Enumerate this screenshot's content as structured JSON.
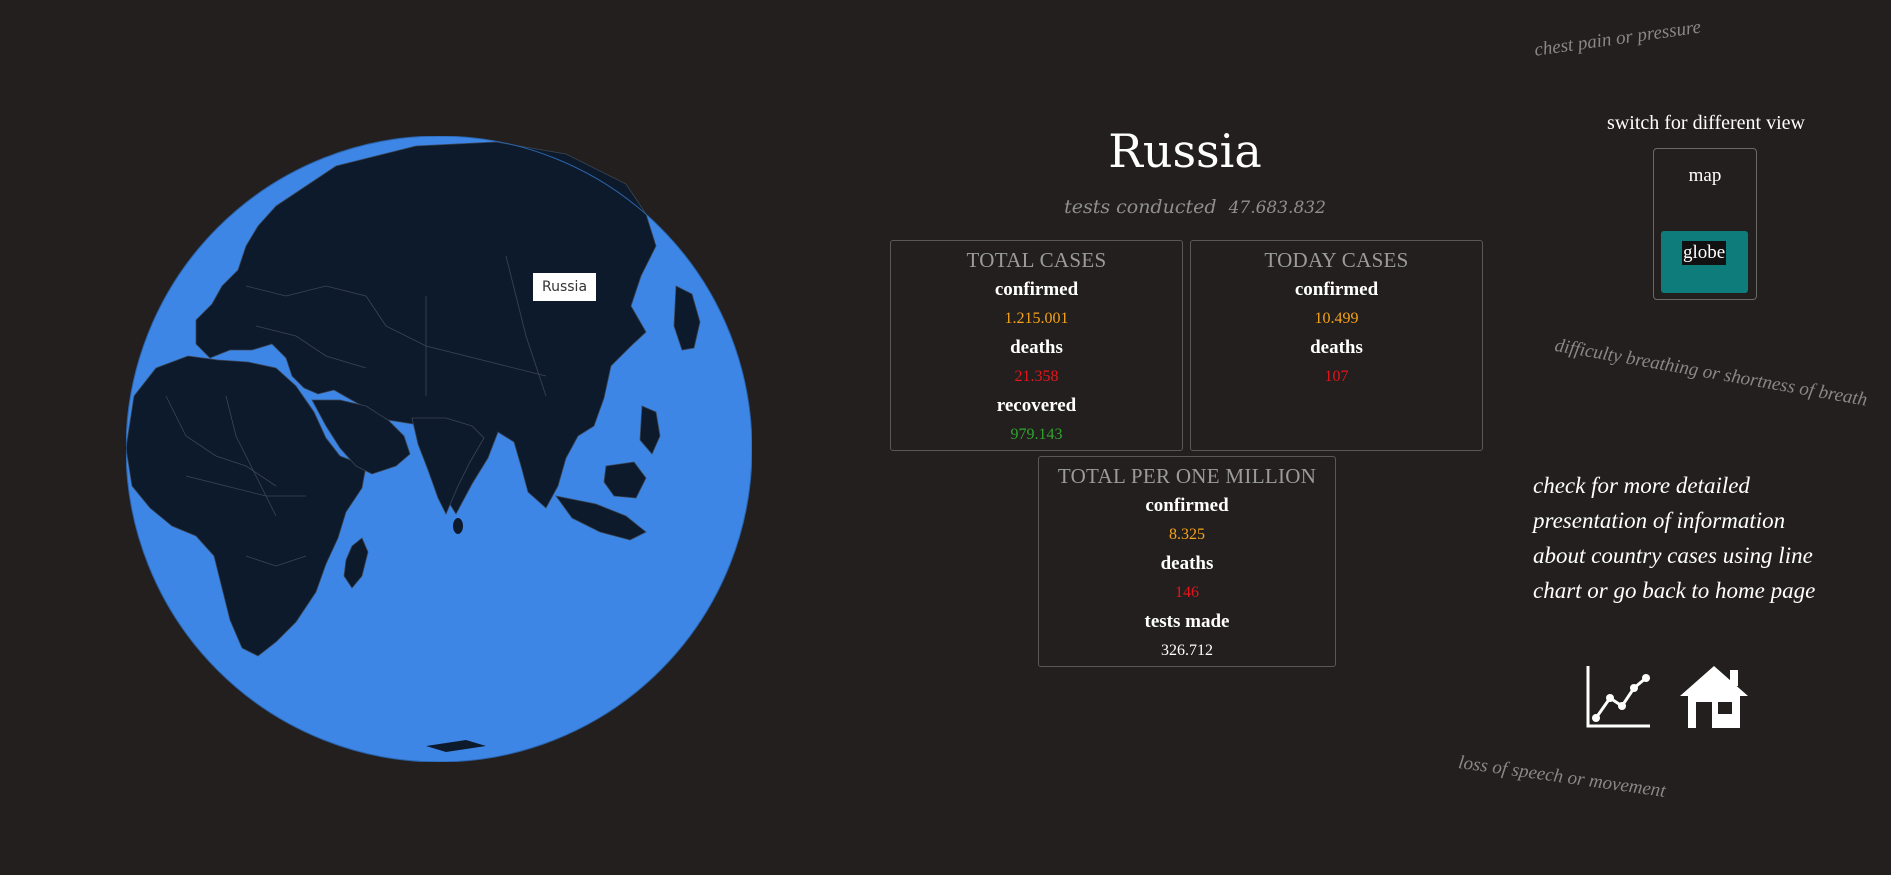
{
  "globe": {
    "tooltip": "Russia"
  },
  "country": {
    "name": "Russia",
    "tests_label": "tests conducted",
    "tests_value": "47.683.832"
  },
  "cards": {
    "total": {
      "title": "TOTAL CASES",
      "confirmed_label": "confirmed",
      "confirmed_value": "1.215.001",
      "deaths_label": "deaths",
      "deaths_value": "21.358",
      "recovered_label": "recovered",
      "recovered_value": "979.143"
    },
    "today": {
      "title": "TODAY CASES",
      "confirmed_label": "confirmed",
      "confirmed_value": "10.499",
      "deaths_label": "deaths",
      "deaths_value": "107"
    },
    "per_million": {
      "title": "TOTAL PER ONE MILLION",
      "confirmed_label": "confirmed",
      "confirmed_value": "8.325",
      "deaths_label": "deaths",
      "deaths_value": "146",
      "tests_label": "tests made",
      "tests_value": "326.712"
    }
  },
  "view_switch": {
    "label": "switch for different view",
    "map": "map",
    "globe": "globe"
  },
  "symptoms": {
    "s1": "chest pain or pressure",
    "s2": "difficulty breathing or shortness of breath",
    "s3": "loss of speech or movement"
  },
  "info": {
    "text": "check for more detailed presentation of information about country cases using line chart or go back to home page"
  },
  "icons": {
    "chart": "line-chart-icon",
    "home": "home-icon"
  },
  "colors": {
    "background": "#221f1e",
    "ocean": "#3d86e6",
    "land": "#0d1a2b",
    "confirmed": "#f5a31a",
    "deaths": "#e8141b",
    "recovered": "#2fa52c",
    "active_toggle": "#0e7c7b"
  }
}
